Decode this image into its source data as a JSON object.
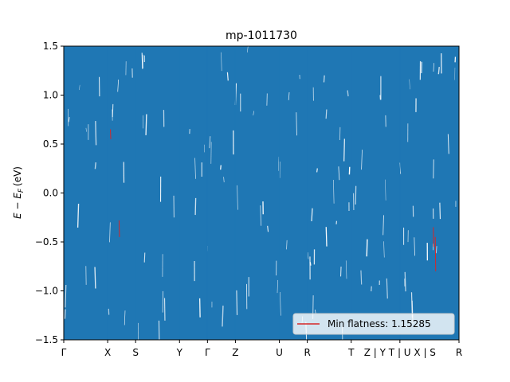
{
  "chart_data": {
    "type": "line",
    "title": "mp-1011730",
    "ylabel": "E − E_F (eV)",
    "ylabel_main": "E − E",
    "ylabel_sub": "F",
    "ylabel_unit": "(eV)",
    "xlabel": "",
    "ylim": [
      -1.5,
      1.5
    ],
    "yticks": [
      -1.5,
      -1.0,
      -0.5,
      0.0,
      0.5,
      1.0,
      1.5
    ],
    "ytick_labels": [
      "−1.5",
      "−1.0",
      "−0.5",
      "0.0",
      "0.5",
      "1.0",
      "1.5"
    ],
    "xlim": [
      0,
      1
    ],
    "x_ticks": [
      {
        "x": 0.0,
        "label": "Γ"
      },
      {
        "x": 0.1111,
        "label": "X"
      },
      {
        "x": 0.1818,
        "label": "S"
      },
      {
        "x": 0.2929,
        "label": "Y"
      },
      {
        "x": 0.3636,
        "label": "Γ"
      },
      {
        "x": 0.4343,
        "label": "Z"
      },
      {
        "x": 0.5455,
        "label": "U"
      },
      {
        "x": 0.6162,
        "label": "R"
      },
      {
        "x": 0.7273,
        "label": "T"
      },
      {
        "x": 0.8505,
        "label": "Z | Y T | U X | S"
      },
      {
        "x": 1.0,
        "label": "R"
      }
    ],
    "series": [
      {
        "name": "",
        "color": "#1f77b4",
        "note": "dense band structure filling energy window"
      },
      {
        "name": "Min flatness: 1.15285",
        "color": "#d62728"
      }
    ],
    "legend": {
      "placement": "lower-right",
      "label": "Min flatness: 1.15285"
    },
    "grid": false
  }
}
